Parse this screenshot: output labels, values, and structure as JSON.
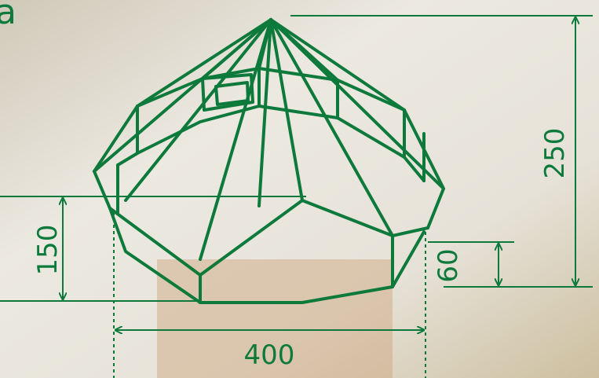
{
  "labels": {
    "corner_letter": "a",
    "height_total": "250",
    "height_wall_left": "150",
    "height_wall_right": "60",
    "width": "400"
  }
}
